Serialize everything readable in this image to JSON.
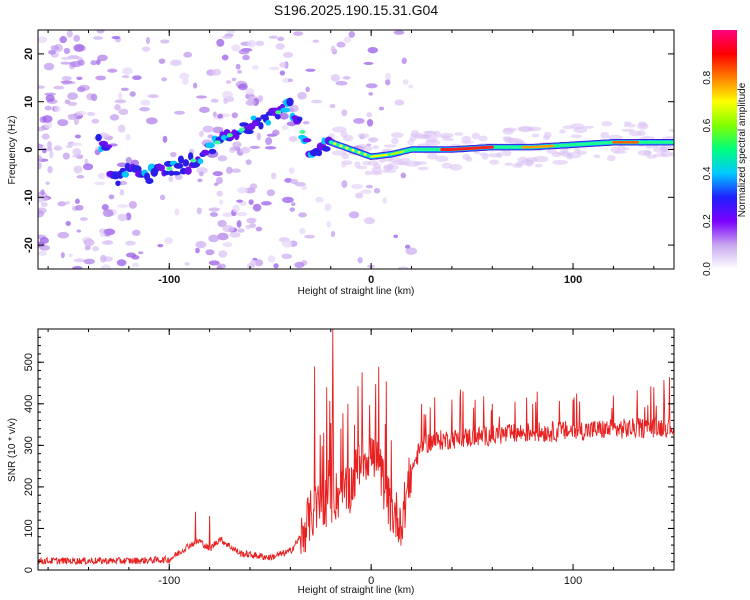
{
  "chart_data": [
    {
      "type": "heatmap",
      "title": "S196.2025.190.15.31.G04",
      "xlabel": "Height of straight line (km)",
      "ylabel": "Frequency (Hz)",
      "xlim": [
        -165,
        150
      ],
      "ylim": [
        -25,
        25
      ],
      "xticks": [
        "-100",
        "0",
        "100"
      ],
      "xtick_values": [
        -100,
        0,
        100
      ],
      "yticks": [
        "20",
        "10",
        "0",
        "-10",
        "-20"
      ],
      "ytick_values": [
        20,
        10,
        0,
        -10,
        -20
      ],
      "colorbar": {
        "label": "Normalized spectral amplitude",
        "range": [
          0,
          1
        ],
        "ticks": [
          "0.0",
          "0.2",
          "0.4",
          "0.6",
          "0.8"
        ],
        "tick_values": [
          0.0,
          0.2,
          0.4,
          0.6,
          0.8
        ],
        "colormap": [
          "#ffffff",
          "#c8a8f0",
          "#7b00ff",
          "#2020ff",
          "#00c8ff",
          "#00ff80",
          "#80ff00",
          "#ffff00",
          "#ff8000",
          "#ff0000",
          "#ff0080"
        ]
      },
      "ridge": [
        {
          "x": -130,
          "f": -6.5
        },
        {
          "x": -120,
          "f": -5
        },
        {
          "x": -110,
          "f": -5.5
        },
        {
          "x": -100,
          "f": -4
        },
        {
          "x": -90,
          "f": -3
        },
        {
          "x": -80,
          "f": 0.5
        },
        {
          "x": -70,
          "f": 3
        },
        {
          "x": -60,
          "f": 5
        },
        {
          "x": -50,
          "f": 7
        },
        {
          "x": -40,
          "f": 9
        },
        {
          "x": -35,
          "f": 5
        },
        {
          "x": -30,
          "f": -1.5
        },
        {
          "x": -20,
          "f": 1.5
        },
        {
          "x": -10,
          "f": 0
        },
        {
          "x": 0,
          "f": -1.5
        },
        {
          "x": 10,
          "f": -1
        },
        {
          "x": 20,
          "f": 0
        },
        {
          "x": 40,
          "f": 0
        },
        {
          "x": 60,
          "f": 0.5
        },
        {
          "x": 80,
          "f": 0.5
        },
        {
          "x": 100,
          "f": 1
        },
        {
          "x": 120,
          "f": 1.5
        },
        {
          "x": 150,
          "f": 1.5
        }
      ],
      "grid": false
    },
    {
      "type": "line",
      "xlabel": "Height of straight line (km)",
      "ylabel": "SNR (10 * v/v)",
      "xlim": [
        -165,
        150
      ],
      "ylim": [
        0,
        580
      ],
      "xticks": [
        "-100",
        "0",
        "100"
      ],
      "xtick_values": [
        -100,
        0,
        100
      ],
      "yticks": [
        "0",
        "100",
        "200",
        "300",
        "400",
        "500"
      ],
      "ytick_values": [
        0,
        100,
        200,
        300,
        400,
        500
      ],
      "series_color": "#e82020",
      "baseline": [
        {
          "x": -165,
          "y": 22
        },
        {
          "x": -120,
          "y": 22
        },
        {
          "x": -100,
          "y": 25
        },
        {
          "x": -90,
          "y": 60
        },
        {
          "x": -85,
          "y": 70
        },
        {
          "x": -80,
          "y": 50
        },
        {
          "x": -75,
          "y": 75
        },
        {
          "x": -65,
          "y": 40
        },
        {
          "x": -50,
          "y": 30
        },
        {
          "x": -40,
          "y": 45
        },
        {
          "x": -35,
          "y": 80
        },
        {
          "x": -30,
          "y": 130
        },
        {
          "x": -25,
          "y": 160
        },
        {
          "x": -20,
          "y": 170
        },
        {
          "x": -10,
          "y": 200
        },
        {
          "x": -5,
          "y": 270
        },
        {
          "x": 0,
          "y": 280
        },
        {
          "x": 5,
          "y": 230
        },
        {
          "x": 10,
          "y": 140
        },
        {
          "x": 15,
          "y": 120
        },
        {
          "x": 20,
          "y": 240
        },
        {
          "x": 25,
          "y": 300
        },
        {
          "x": 30,
          "y": 310
        },
        {
          "x": 50,
          "y": 320
        },
        {
          "x": 75,
          "y": 330
        },
        {
          "x": 100,
          "y": 335
        },
        {
          "x": 125,
          "y": 340
        },
        {
          "x": 150,
          "y": 345
        }
      ],
      "spikes": [
        {
          "x": -87,
          "y": 140
        },
        {
          "x": -80,
          "y": 130
        },
        {
          "x": -28,
          "y": 490
        },
        {
          "x": -22,
          "y": 440
        },
        {
          "x": -19,
          "y": 580
        },
        {
          "x": -15,
          "y": 340
        },
        {
          "x": -6,
          "y": 300
        },
        {
          "x": 2,
          "y": 350
        },
        {
          "x": 25,
          "y": 400
        },
        {
          "x": 40,
          "y": 410
        },
        {
          "x": 60,
          "y": 400
        },
        {
          "x": 80,
          "y": 400
        },
        {
          "x": 100,
          "y": 410
        },
        {
          "x": 120,
          "y": 420
        },
        {
          "x": 140,
          "y": 440
        }
      ],
      "grid": false
    }
  ]
}
